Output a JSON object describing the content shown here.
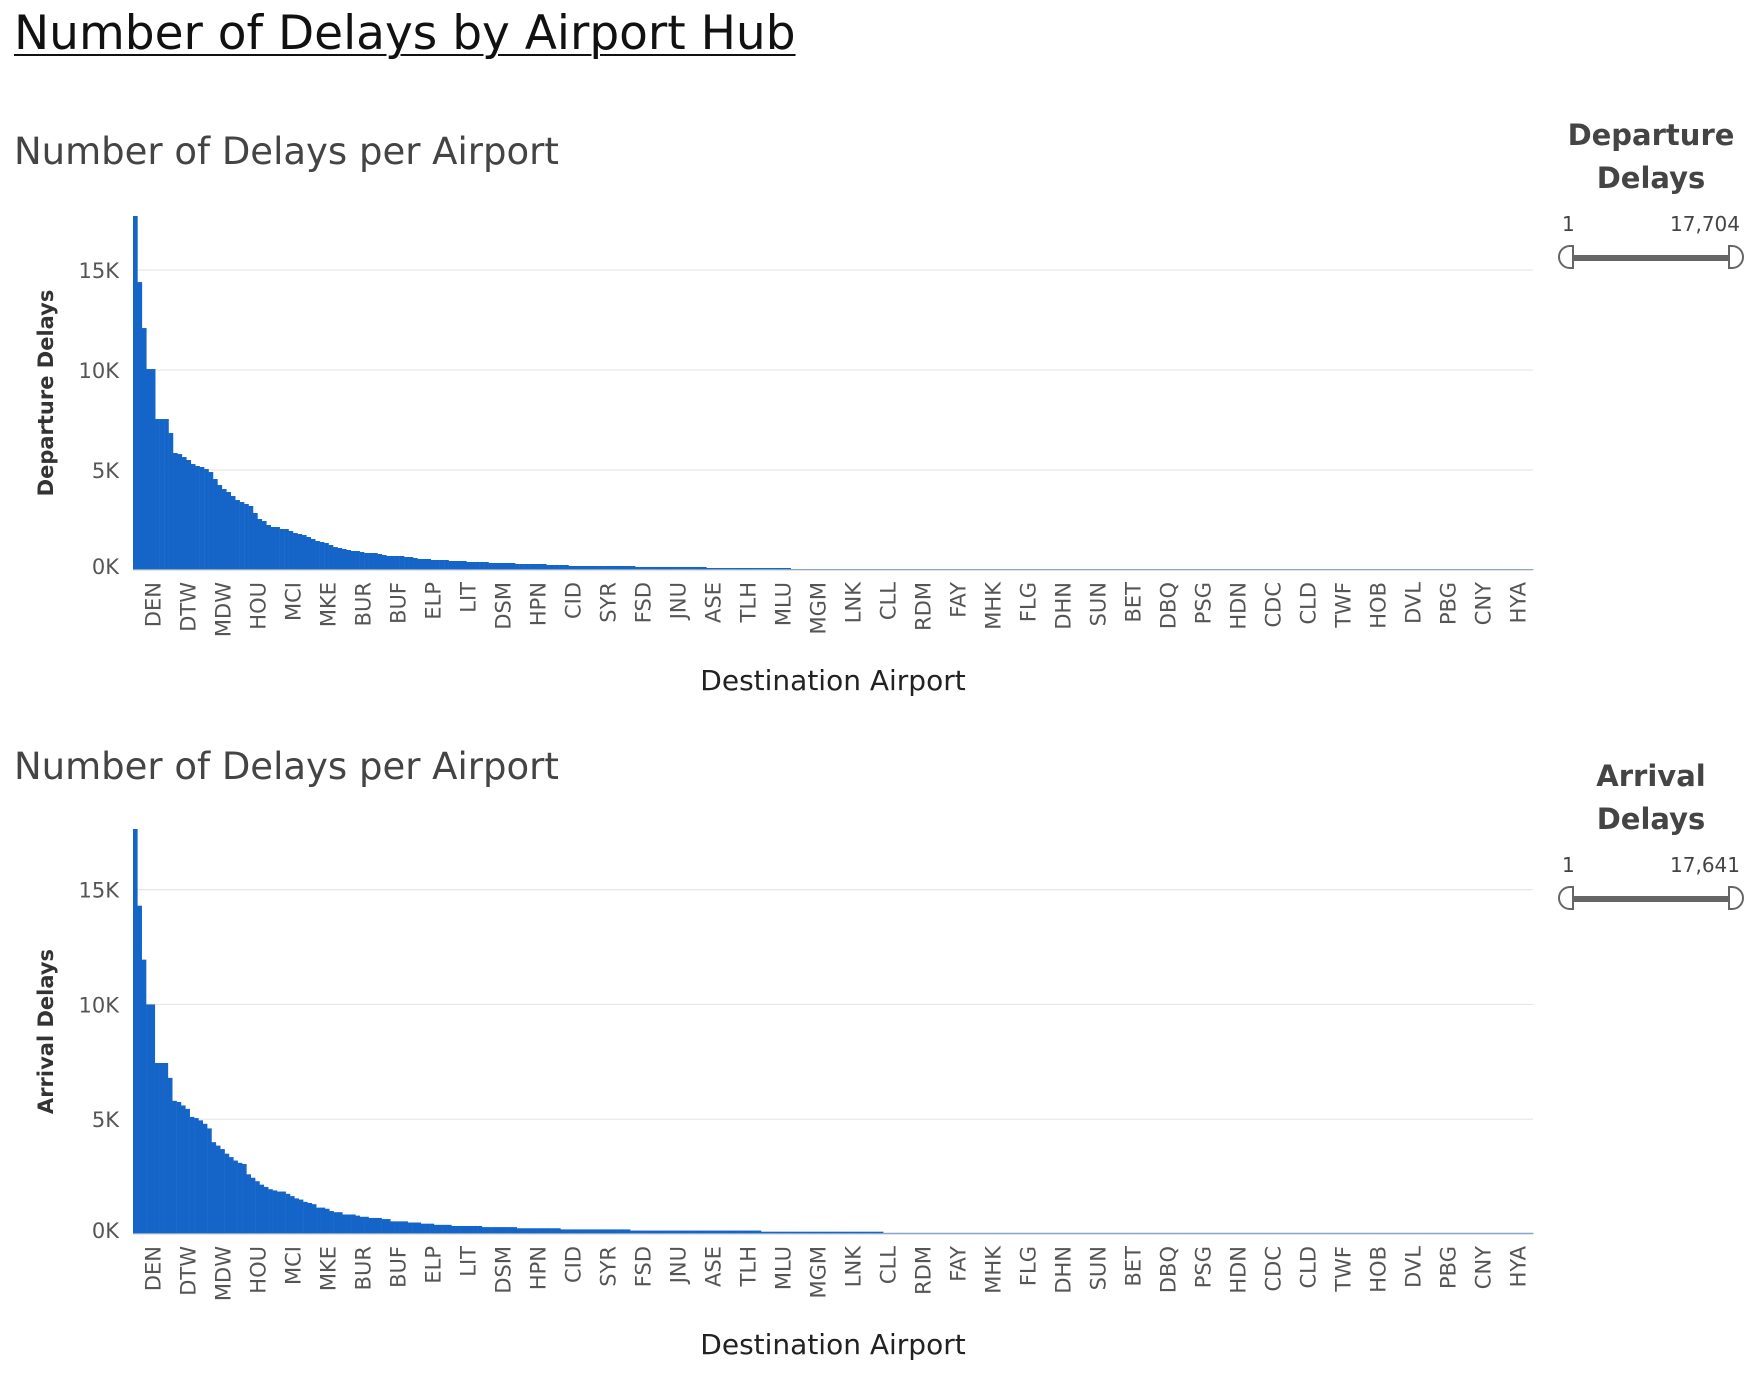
{
  "dashboard": {
    "title": "Number of Delays by Airport Hub"
  },
  "colors": {
    "bar": "#1565c9",
    "grid": "#e6e6e6",
    "axis_text": "#555555"
  },
  "legends": [
    {
      "title_line1": "Departure",
      "title_line2": "Delays",
      "min_label": "1",
      "max_label": "17,704"
    },
    {
      "title_line1": "Arrival",
      "title_line2": "Delays",
      "min_label": "1",
      "max_label": "17,641"
    }
  ],
  "chart_data": [
    {
      "type": "bar",
      "title": "Number of Delays per Airport",
      "xlabel": "Destination Airport",
      "ylabel": "Departure Delays",
      "ylim": [
        0,
        17704
      ],
      "yticks": [
        0,
        5000,
        10000,
        15000
      ],
      "ytick_labels": [
        "0K",
        "5K",
        "10K",
        "15K"
      ],
      "tick_labels": [
        "DEN",
        "DTW",
        "MDW",
        "HOU",
        "MCI",
        "MKE",
        "BUR",
        "BUF",
        "ELP",
        "LIT",
        "DSM",
        "HPN",
        "CID",
        "SYR",
        "FSD",
        "JNU",
        "ASE",
        "TLH",
        "MLU",
        "MGM",
        "LNK",
        "CLL",
        "RDM",
        "FAY",
        "MHK",
        "FLG",
        "DHN",
        "SUN",
        "BET",
        "DBQ",
        "PSG",
        "HDN",
        "CDC",
        "CLD",
        "TWF",
        "HOB",
        "DVL",
        "PBG",
        "CNY",
        "HYA"
      ],
      "values": [
        17704,
        14400,
        12100,
        10050,
        10050,
        7550,
        7550,
        7550,
        6850,
        5850,
        5800,
        5650,
        5500,
        5300,
        5200,
        5150,
        5050,
        4900,
        4550,
        4250,
        4050,
        3900,
        3700,
        3500,
        3400,
        3300,
        3200,
        2850,
        2550,
        2450,
        2250,
        2150,
        2150,
        2050,
        2050,
        1950,
        1850,
        1800,
        1750,
        1650,
        1550,
        1450,
        1400,
        1350,
        1250,
        1150,
        1100,
        1050,
        1000,
        950,
        950,
        900,
        850,
        850,
        850,
        800,
        750,
        700,
        700,
        700,
        700,
        650,
        650,
        600,
        550,
        550,
        550,
        500,
        500,
        500,
        500,
        450,
        450,
        450,
        450,
        400,
        400,
        400,
        400,
        400,
        350,
        350,
        350,
        350,
        350,
        350,
        300,
        300,
        300,
        300,
        300,
        300,
        300,
        250,
        250,
        250,
        250,
        250,
        200,
        200,
        200,
        200,
        200,
        200,
        200,
        200,
        200,
        200,
        200,
        200,
        200,
        200,
        200,
        150,
        150,
        150,
        150,
        150,
        150,
        150,
        150,
        150,
        150,
        150,
        150,
        150,
        150,
        150,
        150,
        100,
        100,
        100,
        100,
        100,
        100,
        100,
        100,
        100,
        100,
        100,
        100,
        100,
        100,
        100,
        100,
        100,
        100,
        100,
        50,
        50,
        50,
        50,
        50,
        50,
        50,
        50,
        50,
        50,
        50,
        50,
        50,
        50,
        50,
        50,
        50,
        50,
        50,
        50,
        50,
        50,
        50,
        50,
        50,
        50,
        50,
        50,
        50,
        50,
        50,
        50,
        50,
        50,
        50,
        50,
        50,
        50,
        50,
        50,
        50,
        50,
        50,
        50,
        50,
        50,
        50,
        50,
        50,
        50,
        50,
        50,
        50,
        50,
        50,
        50,
        50,
        50,
        50,
        50,
        50,
        50,
        50,
        50,
        50,
        50,
        50,
        50,
        50,
        50,
        50,
        50,
        50,
        50,
        50,
        50,
        50,
        50,
        50,
        50,
        50,
        50,
        50,
        50,
        50,
        50,
        50,
        50,
        50,
        50,
        50,
        50,
        50,
        50,
        50,
        50,
        50,
        50,
        50,
        50,
        50,
        50,
        50,
        50,
        50,
        50,
        50,
        50,
        50,
        50,
        50,
        50,
        50,
        50,
        50,
        50,
        50,
        50,
        50,
        50,
        50,
        50,
        50,
        50,
        50,
        50,
        50,
        50,
        50,
        50,
        50,
        50,
        50,
        50,
        50,
        50,
        50,
        50,
        50,
        50,
        50,
        50,
        50,
        50,
        50,
        50,
        50,
        50,
        50,
        50,
        50,
        50,
        50,
        50,
        50,
        50,
        50,
        50,
        50,
        50,
        50,
        50,
        50,
        50,
        50,
        50,
        50
      ]
    },
    {
      "type": "bar",
      "title": "Number of Delays per Airport",
      "xlabel": "Destination Airport",
      "ylabel": "Arrival Delays",
      "ylim": [
        0,
        17641
      ],
      "yticks": [
        0,
        5000,
        10000,
        15000
      ],
      "ytick_labels": [
        "0K",
        "5K",
        "10K",
        "15K"
      ],
      "tick_labels": [
        "DEN",
        "DTW",
        "MDW",
        "HOU",
        "MCI",
        "MKE",
        "BUR",
        "BUF",
        "ELP",
        "LIT",
        "DSM",
        "HPN",
        "CID",
        "SYR",
        "FSD",
        "JNU",
        "ASE",
        "TLH",
        "MLU",
        "MGM",
        "LNK",
        "CLL",
        "RDM",
        "FAY",
        "MHK",
        "FLG",
        "DHN",
        "SUN",
        "BET",
        "DBQ",
        "PSG",
        "HDN",
        "CDC",
        "CLD",
        "TWF",
        "HOB",
        "DVL",
        "PBG",
        "CNY",
        "HYA"
      ],
      "values": [
        17641,
        14300,
        11950,
        10000,
        10000,
        7450,
        7450,
        7450,
        6800,
        5800,
        5750,
        5600,
        5450,
        5100,
        5050,
        4950,
        4800,
        4600,
        4000,
        3850,
        3700,
        3500,
        3350,
        3200,
        3100,
        3050,
        2600,
        2450,
        2300,
        2150,
        2050,
        1950,
        1900,
        1850,
        1850,
        1750,
        1650,
        1550,
        1500,
        1400,
        1350,
        1300,
        1150,
        1150,
        1100,
        1000,
        950,
        950,
        850,
        850,
        850,
        800,
        750,
        750,
        700,
        700,
        700,
        650,
        650,
        550,
        550,
        550,
        550,
        500,
        500,
        500,
        450,
        450,
        450,
        400,
        400,
        400,
        400,
        350,
        350,
        350,
        350,
        350,
        350,
        350,
        300,
        300,
        300,
        300,
        300,
        300,
        300,
        300,
        250,
        250,
        250,
        250,
        250,
        250,
        250,
        250,
        250,
        250,
        200,
        200,
        200,
        200,
        200,
        200,
        200,
        200,
        200,
        200,
        200,
        200,
        200,
        200,
        200,
        200,
        150,
        150,
        150,
        150,
        150,
        150,
        150,
        150,
        150,
        150,
        150,
        150,
        150,
        150,
        150,
        150,
        150,
        150,
        150,
        150,
        150,
        150,
        150,
        150,
        150,
        150,
        150,
        150,
        150,
        150,
        100,
        100,
        100,
        100,
        100,
        100,
        100,
        100,
        100,
        100,
        100,
        100,
        100,
        100,
        100,
        100,
        100,
        100,
        100,
        100,
        100,
        100,
        100,
        100,
        100,
        100,
        100,
        100,
        50,
        50,
        50,
        50,
        50,
        50,
        50,
        50,
        50,
        50,
        50,
        50,
        50,
        50,
        50,
        50,
        50,
        50,
        50,
        50,
        50,
        50,
        50,
        50,
        50,
        50,
        50,
        50,
        50,
        50,
        50,
        50,
        50,
        50,
        50,
        50,
        50,
        50,
        50,
        50,
        50,
        50,
        50,
        50,
        50,
        50,
        50,
        50,
        50,
        50,
        50,
        50,
        50,
        50,
        50,
        50,
        50,
        50,
        50,
        50,
        50,
        50,
        50,
        50,
        50,
        50,
        50,
        50,
        50,
        50,
        50,
        50,
        50,
        50,
        50,
        50,
        50,
        50,
        50,
        50,
        50,
        50,
        50,
        50,
        50,
        50,
        50,
        50,
        50,
        50,
        50,
        50,
        50,
        50,
        50,
        50,
        50,
        50,
        50,
        50,
        50,
        50,
        50,
        50,
        50,
        50,
        50,
        50,
        50,
        50,
        50,
        50,
        50,
        50,
        50,
        50,
        50,
        50,
        50,
        50,
        50,
        50,
        50,
        50,
        50,
        50,
        50,
        50,
        50,
        50,
        50,
        50,
        50,
        50,
        50,
        50,
        50,
        50,
        50,
        50,
        50,
        50,
        50,
        50,
        50,
        50,
        50,
        50,
        50
      ]
    }
  ]
}
